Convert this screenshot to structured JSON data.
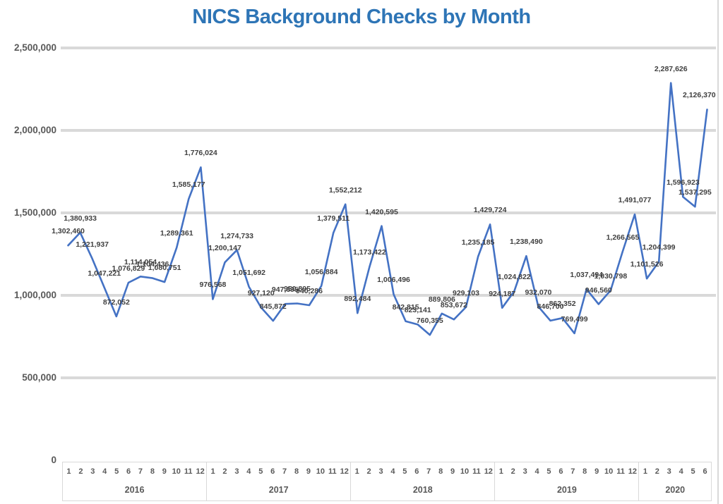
{
  "title": "NICS Background Checks by Month",
  "colors": {
    "title": "#2E75B6",
    "line": "#4472C4",
    "gridline": "#D9D9D9",
    "axis_text": "#595959",
    "data_label_text": "#404040"
  },
  "y_axis": {
    "tick_labels": [
      "2,500,000",
      "2,000,000",
      "1,500,000",
      "1,000,000",
      "500,000",
      "0"
    ],
    "tick_values": [
      2500000,
      2000000,
      1500000,
      1000000,
      500000,
      0
    ]
  },
  "chart_data": {
    "type": "line",
    "title": "NICS Background Checks by Month",
    "xlabel": "",
    "ylabel": "",
    "ylim": [
      0,
      2500000
    ],
    "grid": true,
    "legend_position": "none",
    "data_labels_shown": true,
    "years": [
      {
        "label": "2016",
        "month_ticks": [
          "1",
          "2",
          "3",
          "4",
          "5",
          "6",
          "7",
          "8",
          "9",
          "10",
          "11",
          "12"
        ],
        "values": [
          1302460,
          1380933,
          1221937,
          1047221,
          872052,
          1076829,
          1114054,
          1104436,
          1080751,
          1289361,
          1585177,
          1776024
        ]
      },
      {
        "label": "2017",
        "month_ticks": [
          "1",
          "2",
          "3",
          "4",
          "5",
          "6",
          "7",
          "8",
          "9",
          "10",
          "11",
          "12"
        ],
        "values": [
          976568,
          1200147,
          1274733,
          1051692,
          927120,
          845872,
          947695,
          950895,
          940286,
          1056884,
          1379511,
          1552212
        ]
      },
      {
        "label": "2018",
        "month_ticks": [
          "1",
          "2",
          "3",
          "4",
          "5",
          "6",
          "7",
          "8",
          "9",
          "10",
          "11",
          "12"
        ],
        "values": [
          892484,
          1173422,
          1420595,
          1006496,
          842815,
          823141,
          760355,
          889806,
          853672,
          929103,
          1235185,
          1429724
        ]
      },
      {
        "label": "2019",
        "month_ticks": [
          "1",
          "2",
          "3",
          "4",
          "5",
          "6",
          "7",
          "8",
          "9",
          "10",
          "11",
          "12"
        ],
        "values": [
          924187,
          1024822,
          1238490,
          932070,
          846700,
          862352,
          769499,
          1037494,
          946560,
          1030798,
          1266565,
          1491077
        ]
      },
      {
        "label": "2020",
        "month_ticks": [
          "1",
          "2",
          "3",
          "4",
          "5",
          "6"
        ],
        "values": [
          1101526,
          1204399,
          2287626,
          1596923,
          1537295,
          2126370
        ]
      }
    ]
  }
}
